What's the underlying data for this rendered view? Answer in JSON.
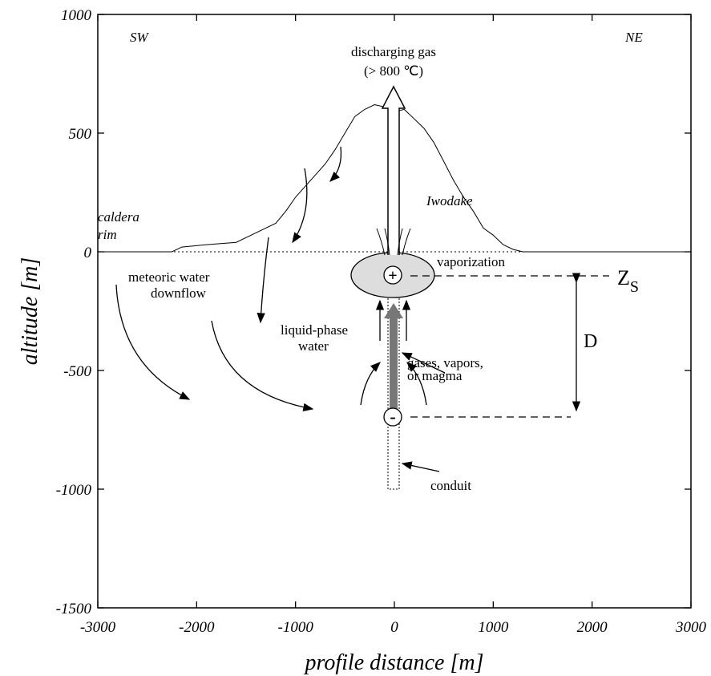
{
  "chart_data": {
    "type": "line",
    "x_label": "profile distance [m]",
    "y_label": "altitude [m]",
    "x": [
      -3000,
      -2250,
      -2150,
      -1900,
      -1600,
      -1400,
      -1200,
      -1100,
      -1000,
      -850,
      -700,
      -600,
      -500,
      -400,
      -300,
      -200,
      -100,
      0,
      100,
      200,
      300,
      400,
      500,
      600,
      700,
      800,
      900,
      1000,
      1100,
      1200,
      1300,
      3000
    ],
    "values": [
      0,
      0,
      20,
      30,
      40,
      80,
      120,
      170,
      230,
      300,
      370,
      430,
      500,
      570,
      600,
      620,
      610,
      590,
      600,
      560,
      520,
      460,
      380,
      300,
      230,
      170,
      100,
      70,
      30,
      10,
      0,
      0
    ],
    "color": "#000000",
    "xlim": [
      -3000,
      3000
    ],
    "ylim": [
      -1500,
      1000
    ],
    "xticks": [
      -3000,
      -2000,
      -1000,
      0,
      1000,
      2000,
      3000
    ],
    "yticks": [
      1000,
      500,
      0,
      -500,
      -1000,
      -1500
    ],
    "annotations": [
      "SW",
      "NE",
      "discharging gas",
      "(> 800 ℃)",
      "Iwodake",
      "caldera",
      "rim",
      "vaporization",
      "meteoric water",
      "downflow",
      "liquid-phase",
      "water",
      "gases, vapors,",
      "or magma",
      "conduit",
      "D",
      "Z",
      "S",
      "+",
      "-"
    ]
  }
}
